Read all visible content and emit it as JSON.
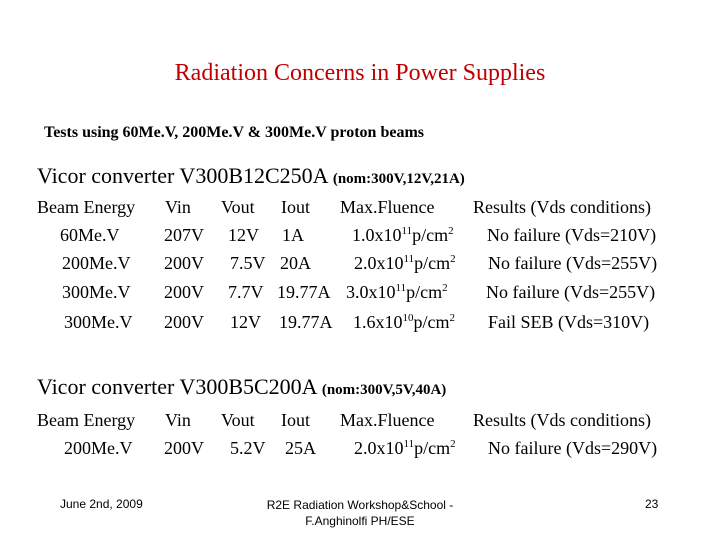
{
  "title": "Radiation Concerns in Power Supplies",
  "subtitle": "Tests using 60Me.V, 200Me.V & 300Me.V proton beams",
  "sections": [
    {
      "name": "Vicor converter V300B12C250A",
      "nominal": "(nom:300V,12V,21A)",
      "headers": {
        "beam": "Beam Energy",
        "vin": "Vin",
        "vout": "Vout",
        "iout": "Iout",
        "fluence": "Max.Fluence",
        "results": "Results (Vds conditions)"
      },
      "rows": [
        {
          "beam": "60Me.V",
          "vin": "207V",
          "vout": "12V",
          "iout": "1A",
          "fluence_base": "1.0x10",
          "fluence_exp": "11",
          "fluence_unit": "p/cm",
          "fluence_unit_exp": "2",
          "result": "No failure (Vds=210V)"
        },
        {
          "beam": "200Me.V",
          "vin": "200V",
          "vout": "7.5V",
          "iout": "20A",
          "fluence_base": "2.0x10",
          "fluence_exp": "11",
          "fluence_unit": "p/cm",
          "fluence_unit_exp": "2",
          "result": "No failure (Vds=255V)"
        },
        {
          "beam": "300Me.V",
          "vin": "200V",
          "vout": "7.7V",
          "iout": "19.77A",
          "fluence_base": "3.0x10",
          "fluence_exp": "11",
          "fluence_unit": "p/cm",
          "fluence_unit_exp": "2",
          "result": "No failure (Vds=255V)"
        },
        {
          "beam": "300Me.V",
          "vin": "200V",
          "vout": "12V",
          "iout": "19.77A",
          "fluence_base": "1.6x10",
          "fluence_exp": "10",
          "fluence_unit": "p/cm",
          "fluence_unit_exp": "2",
          "result": "Fail SEB (Vds=310V)"
        }
      ]
    },
    {
      "name": "Vicor converter V300B5C200A",
      "nominal": "(nom:300V,5V,40A)",
      "headers": {
        "beam": "Beam Energy",
        "vin": "Vin",
        "vout": "Vout",
        "iout": "Iout",
        "fluence": "Max.Fluence",
        "results": "Results (Vds conditions)"
      },
      "rows": [
        {
          "beam": "200Me.V",
          "vin": "200V",
          "vout": "5.2V",
          "iout": "25A",
          "fluence_base": "2.0x10",
          "fluence_exp": "11",
          "fluence_unit": "p/cm",
          "fluence_unit_exp": "2",
          "result": "No failure (Vds=290V)"
        }
      ]
    }
  ],
  "footer": {
    "date": "June 2nd, 2009",
    "event": "R2E Radiation Workshop&School - F.Anghinolfi PH/ESE",
    "page": "23"
  },
  "colors": {
    "title": "#c00000",
    "text": "#000000",
    "background": "#ffffff"
  }
}
